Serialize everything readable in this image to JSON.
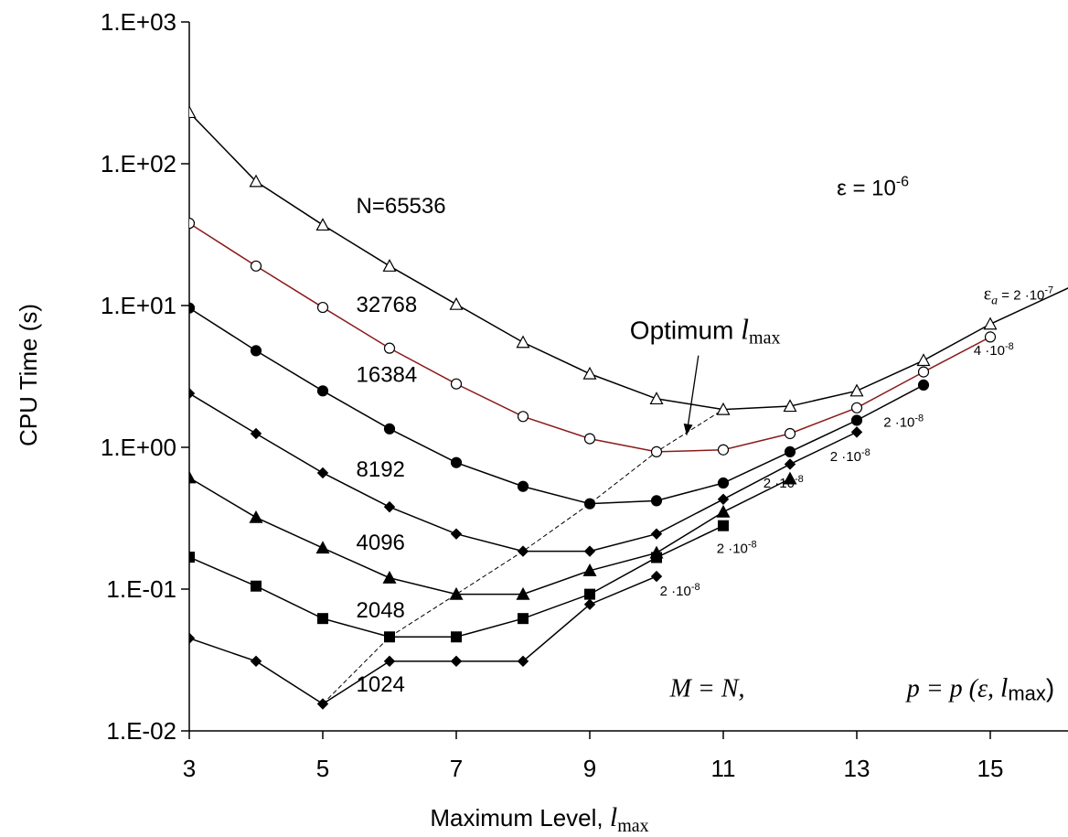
{
  "chart_data": {
    "type": "line",
    "xlabel": "Maximum Level, ",
    "xlabel_symbol": "l",
    "xlabel_subscript": "max",
    "ylabel": "CPU Time (s)",
    "y_scale": "log",
    "xlim": [
      3,
      16.2
    ],
    "ylim": [
      0.01,
      1000
    ],
    "x_ticks": [
      3,
      5,
      7,
      9,
      11,
      13,
      15
    ],
    "y_ticks": [
      {
        "value": 1000,
        "label": "1.E+03"
      },
      {
        "value": 100,
        "label": "1.E+02"
      },
      {
        "value": 10,
        "label": "1.E+01"
      },
      {
        "value": 1,
        "label": "1.E+00"
      },
      {
        "value": 0.1,
        "label": "1.E-01"
      },
      {
        "value": 0.01,
        "label": "1.E-02"
      }
    ],
    "grid": false,
    "series": [
      {
        "name": "N=65536",
        "marker": "triangle-open",
        "color": "#000000",
        "x": [
          3,
          4,
          5,
          6,
          7,
          8,
          9,
          10,
          11,
          12,
          13,
          14,
          15,
          16.2
        ],
        "y": [
          230,
          75,
          37,
          19,
          10.2,
          5.5,
          3.3,
          2.2,
          1.85,
          1.95,
          2.5,
          4.1,
          7.4,
          13.5
        ]
      },
      {
        "name": "32768",
        "marker": "circle-open",
        "color": "#8b1a1a",
        "x": [
          3,
          4,
          5,
          6,
          7,
          8,
          9,
          10,
          11,
          12,
          13,
          14,
          15
        ],
        "y": [
          38,
          19,
          9.7,
          5,
          2.8,
          1.65,
          1.15,
          0.93,
          0.96,
          1.25,
          1.9,
          3.4,
          6
        ]
      },
      {
        "name": "16384",
        "marker": "circle-filled",
        "color": "#000000",
        "x": [
          3,
          4,
          5,
          6,
          7,
          8,
          9,
          10,
          11,
          12,
          13,
          14
        ],
        "y": [
          9.6,
          4.8,
          2.5,
          1.35,
          0.78,
          0.53,
          0.4,
          0.42,
          0.56,
          0.93,
          1.55,
          2.75
        ]
      },
      {
        "name": "8192",
        "marker": "diamond-filled",
        "color": "#000000",
        "x": [
          3,
          4,
          5,
          6,
          7,
          8,
          9,
          10,
          11,
          12,
          13
        ],
        "y": [
          2.4,
          1.25,
          0.66,
          0.38,
          0.245,
          0.185,
          0.185,
          0.245,
          0.43,
          0.76,
          1.28
        ]
      },
      {
        "name": "4096",
        "marker": "triangle-filled",
        "color": "#000000",
        "x": [
          3,
          4,
          5,
          6,
          7,
          8,
          9,
          10,
          11,
          12
        ],
        "y": [
          0.61,
          0.32,
          0.195,
          0.12,
          0.092,
          0.092,
          0.135,
          0.18,
          0.35,
          0.6
        ]
      },
      {
        "name": "2048",
        "marker": "square-filled",
        "color": "#000000",
        "x": [
          3,
          4,
          5,
          6,
          7,
          8,
          9,
          10,
          11
        ],
        "y": [
          0.168,
          0.105,
          0.062,
          0.046,
          0.046,
          0.062,
          0.092,
          0.167,
          0.28
        ]
      },
      {
        "name": "1024",
        "marker": "diamond-filled",
        "color": "#000000",
        "x": [
          3,
          4,
          5,
          6,
          7,
          8,
          9,
          10
        ],
        "y": [
          0.045,
          0.031,
          0.0155,
          0.031,
          0.031,
          0.031,
          0.078,
          0.123
        ]
      }
    ],
    "optimum_line": {
      "x": [
        5,
        6,
        7,
        8,
        9,
        10,
        11
      ],
      "y": [
        0.0155,
        0.046,
        0.092,
        0.185,
        0.4,
        0.93,
        1.85
      ]
    }
  },
  "annotations": {
    "series_labels": [
      {
        "text": "N=65536",
        "x": 5.5,
        "y": 45
      },
      {
        "text": "32768",
        "x": 5.5,
        "y": 9
      },
      {
        "text": "16384",
        "x": 5.5,
        "y": 2.9
      },
      {
        "text": "8192",
        "x": 5.5,
        "y": 0.62
      },
      {
        "text": "4096",
        "x": 5.5,
        "y": 0.19
      },
      {
        "text": "2048",
        "x": 5.5,
        "y": 0.063
      },
      {
        "text": "1024",
        "x": 5.5,
        "y": 0.019
      }
    ],
    "epsilon_a_labels": [
      {
        "text": "2 ·10",
        "exp": "-8",
        "x": 10.05,
        "y": 0.09
      },
      {
        "text": "2 ·10",
        "exp": "-8",
        "x": 10.9,
        "y": 0.18
      },
      {
        "text": "2 ·10",
        "exp": "-8",
        "x": 11.6,
        "y": 0.52
      },
      {
        "text": "2 ·10",
        "exp": "-8",
        "x": 12.6,
        "y": 0.8
      },
      {
        "text": "2 ·10",
        "exp": "-8",
        "x": 13.4,
        "y": 1.4
      },
      {
        "text": "4 ·10",
        "exp": "-8",
        "x": 14.75,
        "y": 4.5
      }
    ],
    "epsilon_a_top": {
      "symbol": "ε",
      "sub": "a",
      "eq": " = 2 ·10",
      "exp": "-7",
      "x": 14.9,
      "y": 11
    },
    "epsilon": {
      "text": "ε = 10",
      "exp": "-6",
      "x": 12.7,
      "y": 60
    },
    "optimum": {
      "text": "Optimum ",
      "symbol": "l",
      "sub": "max",
      "x": 9.6,
      "y": 5.8
    },
    "m_eq_n": {
      "text": "M = N,",
      "x": 10.2,
      "y": 0.0175
    },
    "p_eq": {
      "text": "p = p (ε, ",
      "symbol": "l",
      "sub": "max",
      "close": ")",
      "x": 13.75,
      "y": 0.0175
    }
  }
}
